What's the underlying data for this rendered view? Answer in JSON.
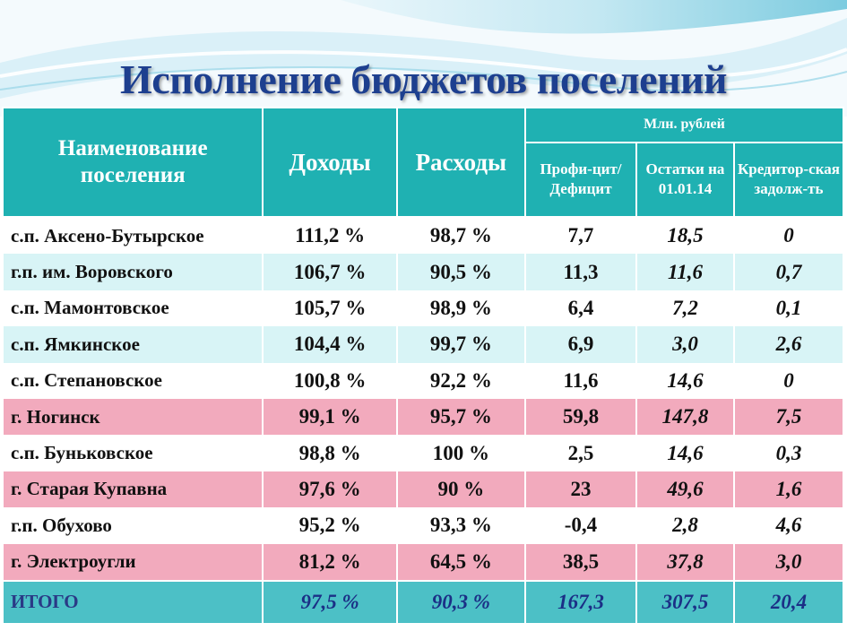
{
  "title": "Исполнение бюджетов поселений",
  "header": {
    "name": "Наименование поселения",
    "income": "Доходы",
    "expenses": "Расходы",
    "unit": "Млн. рублей",
    "surplus": "Профи-цит/ Дефицит",
    "balance": "Остатки на 01.01.14",
    "debt": "Кредитор-ская задолж-ть"
  },
  "rows": [
    {
      "name": "с.п. Аксено-Бутырское",
      "income": "111,2  %",
      "expenses": "98,7 %",
      "surplus": "7,7",
      "balance": "18,5",
      "debt": "0",
      "tone": "white"
    },
    {
      "name": "г.п. им. Воровского",
      "income": "106,7  %",
      "expenses": "90,5  %",
      "surplus": "11,3",
      "balance": "11,6",
      "debt": "0,7",
      "tone": "light"
    },
    {
      "name": "с.п. Мамонтовское",
      "income": "105,7  %",
      "expenses": "98,9  %",
      "surplus": "6,4",
      "balance": "7,2",
      "debt": "0,1",
      "tone": "white"
    },
    {
      "name": "с.п. Ямкинское",
      "income": "104,4  %",
      "expenses": "99,7  %",
      "surplus": "6,9",
      "balance": "3,0",
      "debt": "2,6",
      "tone": "light"
    },
    {
      "name": "с.п. Степановское",
      "income": "100,8  %",
      "expenses": "92,2  %",
      "surplus": "11,6",
      "balance": "14,6",
      "debt": "0",
      "tone": "white"
    },
    {
      "name": "г. Ногинск",
      "income": "99,1  %",
      "expenses": "95,7  %",
      "surplus": "59,8",
      "balance": "147,8",
      "debt": "7,5",
      "tone": "pink"
    },
    {
      "name": "с.п. Буньковское",
      "income": "98,8  %",
      "expenses": "100  %",
      "surplus": "2,5",
      "balance": "14,6",
      "debt": "0,3",
      "tone": "white"
    },
    {
      "name": "г. Старая Купавна",
      "income": "97,6 %",
      "expenses": "90  %",
      "surplus": "23",
      "balance": "49,6",
      "debt": "1,6",
      "tone": "pink"
    },
    {
      "name": "г.п. Обухово",
      "income": "95,2 %",
      "expenses": "93,3  %",
      "surplus": "-0,4",
      "balance": "2,8",
      "debt": "4,6",
      "tone": "white"
    },
    {
      "name": "г. Электроугли",
      "income": "81,2  %",
      "expenses": "64,5 %",
      "surplus": "38,5",
      "balance": "37,8",
      "debt": "3,0",
      "tone": "pink"
    }
  ],
  "total": {
    "name": "ИТОГО",
    "income": "97,5 %",
    "expenses": "90,3 %",
    "surplus": "167,3",
    "balance": "307,5",
    "debt": "20,4"
  },
  "colors": {
    "header": "#1fb1b2",
    "light_row": "#d8f4f6",
    "pink_row": "#f2aabd",
    "total_row": "#4cc0c6",
    "title": "#1d3f8f"
  }
}
